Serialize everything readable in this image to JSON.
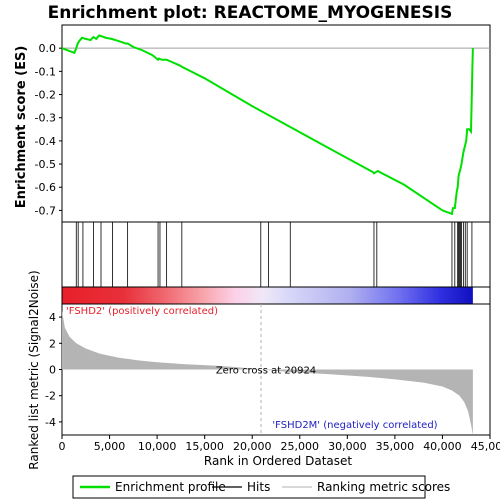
{
  "chart_data": {
    "type": "line",
    "title": "Enrichment plot: REACTOME_MYOGENESIS",
    "top_panel": {
      "ylabel": "Enrichment score (ES)",
      "ylim": [
        -0.75,
        0.1
      ],
      "yticks": [
        "0.0",
        "-0.1",
        "-0.2",
        "-0.3",
        "-0.4",
        "-0.5",
        "-0.6",
        "-0.7"
      ],
      "series": [
        {
          "name": "Enrichment profile",
          "color": "#00e000",
          "x": [
            0,
            1300,
            1500,
            1650,
            1800,
            2100,
            2500,
            3000,
            3300,
            3600,
            3900,
            4600,
            5200,
            6000,
            6700,
            6900,
            7500,
            8500,
            9500,
            10100,
            10200,
            10500,
            11000,
            12400,
            12600,
            15000,
            20000,
            24000,
            28000,
            32700,
            32800,
            33000,
            33200,
            36000,
            40000,
            41000,
            41100,
            41300,
            41500,
            41600,
            41700,
            41900,
            42000,
            42200,
            42500,
            42600,
            42800,
            43000,
            43050,
            43100,
            43150,
            43200
          ],
          "y": [
            0.0,
            -0.02,
            0.0,
            0.02,
            0.03,
            0.045,
            0.04,
            0.035,
            0.048,
            0.04,
            0.055,
            0.045,
            0.04,
            0.03,
            0.02,
            0.02,
            0.005,
            -0.01,
            -0.03,
            -0.05,
            -0.045,
            -0.05,
            -0.05,
            -0.075,
            -0.08,
            -0.13,
            -0.25,
            -0.34,
            -0.43,
            -0.535,
            -0.54,
            -0.535,
            -0.53,
            -0.59,
            -0.7,
            -0.715,
            -0.69,
            -0.69,
            -0.62,
            -0.6,
            -0.55,
            -0.52,
            -0.5,
            -0.45,
            -0.4,
            -0.35,
            -0.35,
            -0.36,
            -0.27,
            -0.18,
            -0.08,
            0.0
          ]
        }
      ]
    },
    "hits": {
      "name": "Hits",
      "x": [
        1500,
        1700,
        2200,
        3300,
        4100,
        5300,
        6900,
        10100,
        10300,
        11000,
        12600,
        20900,
        21700,
        24000,
        32800,
        33100,
        41000,
        41300,
        41600,
        41700,
        41800,
        41900,
        42000,
        42200,
        42400,
        42600,
        43100
      ]
    },
    "middle_panel": {
      "label_pos": "'FSHD2' (positively correlated)",
      "label_neg": "'FSHD2M' (negatively correlated)"
    },
    "bottom_panel": {
      "name": "Ranking metric scores",
      "ylabel": "Ranked list metric (Signal2Noise)",
      "xlabel": "Rank in Ordered Dataset",
      "ylim": [
        -5,
        5
      ],
      "yticks": [
        "4",
        "2",
        "0",
        "-2",
        "-4"
      ],
      "zero_cross_label": "Zero cross at 20924",
      "zero_cross": 20924,
      "curve_x": [
        0,
        300,
        800,
        1500,
        2500,
        4000,
        6000,
        8000,
        10000,
        13000,
        16000,
        18000,
        20924,
        24000,
        28000,
        32000,
        35000,
        38000,
        40000,
        41000,
        41800,
        42300,
        42700,
        43000,
        43200
      ],
      "curve_y": [
        4.5,
        3.2,
        2.5,
        2.0,
        1.6,
        1.2,
        0.9,
        0.7,
        0.55,
        0.4,
        0.3,
        0.2,
        0.0,
        -0.2,
        -0.35,
        -0.55,
        -0.75,
        -1.0,
        -1.3,
        -1.6,
        -2.0,
        -2.5,
        -3.2,
        -4.2,
        -5.0
      ]
    },
    "xaxis": {
      "xlim": [
        0,
        45000
      ],
      "ticks": [
        0,
        5000,
        10000,
        15000,
        20000,
        25000,
        30000,
        35000,
        40000,
        45000
      ],
      "tick_labels": [
        "0",
        "5,000",
        "10,000",
        "15,000",
        "20,000",
        "25,000",
        "30,000",
        "35,000",
        "40,000",
        "45,000"
      ]
    },
    "legend": {
      "placement": "bottom",
      "items": [
        {
          "label": "Enrichment profile",
          "color": "#00e000"
        },
        {
          "label": "Hits",
          "color": "#000000"
        },
        {
          "label": "Ranking metric scores",
          "color": "#c0c0c0"
        }
      ]
    },
    "colors": {
      "positive_bar": "#e8202a",
      "negative_bar": "#2020e0",
      "metric_fill": "#b4b4b4",
      "pos_text": "#e8202a",
      "neg_text": "#2020c0"
    }
  }
}
